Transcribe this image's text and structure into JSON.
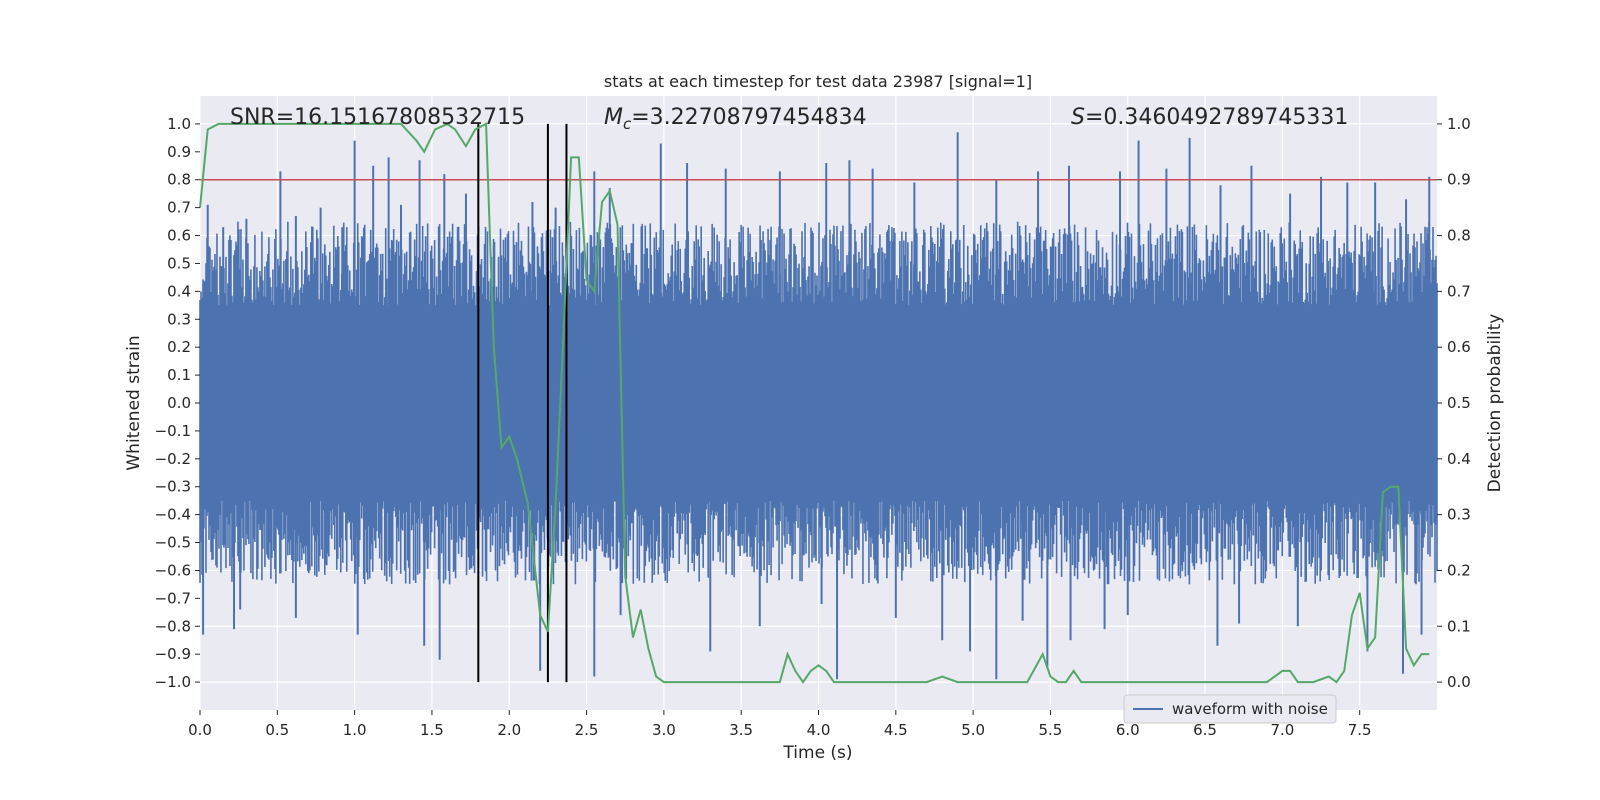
{
  "chart_data": {
    "type": "line",
    "title": "stats at each timestep for test data 23987 [signal=1]",
    "xlabel": "Time (s)",
    "ylabel": "Whitened strain",
    "y2label": "Detection probability",
    "xlim": [
      0.0,
      8.0
    ],
    "ylim": [
      -1.1,
      1.1
    ],
    "y2lim": [
      -0.05,
      1.05
    ],
    "xticks": [
      0.0,
      0.5,
      1.0,
      1.5,
      2.0,
      2.5,
      3.0,
      3.5,
      4.0,
      4.5,
      5.0,
      5.5,
      6.0,
      6.5,
      7.0,
      7.5
    ],
    "xtick_labels": [
      "0.0",
      "0.5",
      "1.0",
      "1.5",
      "2.0",
      "2.5",
      "3.0",
      "3.5",
      "4.0",
      "4.5",
      "5.0",
      "5.5",
      "6.0",
      "6.5",
      "7.0",
      "7.5"
    ],
    "yticks": [
      1.0,
      0.9,
      0.8,
      0.7,
      0.6,
      0.5,
      0.4,
      0.3,
      0.2,
      0.1,
      0.0,
      -0.1,
      -0.2,
      -0.3,
      -0.4,
      -0.5,
      -0.6,
      -0.7,
      -0.8,
      -0.9,
      -1.0
    ],
    "ytick_labels": [
      "1.0",
      "0.9",
      "0.8",
      "0.7",
      "0.6",
      "0.5",
      "0.4",
      "0.3",
      "0.2",
      "0.1",
      "0.0",
      "−0.1",
      "−0.2",
      "−0.3",
      "−0.4",
      "−0.5",
      "−0.6",
      "−0.7",
      "−0.8",
      "−0.9",
      "−1.0"
    ],
    "y2ticks": [
      1.0,
      0.9,
      0.8,
      0.7,
      0.6,
      0.5,
      0.4,
      0.3,
      0.2,
      0.1,
      0.0
    ],
    "y2tick_labels": [
      "1.0",
      "0.9",
      "0.8",
      "0.7",
      "0.6",
      "0.5",
      "0.4",
      "0.3",
      "0.2",
      "0.1",
      "0.0"
    ],
    "annotations": {
      "snr": "SNR=16.15167808532715",
      "mc_symbol": "M",
      "mc_sub": "c",
      "mc_value": "=3.22708797454834",
      "s_symbol": "S",
      "s_value": "=0.3460492789745331"
    },
    "threshold": {
      "value": 0.9,
      "axis": "right",
      "color": "#c44e52"
    },
    "vlines": [
      1.8,
      2.25,
      2.37
    ],
    "legend": {
      "label": "waveform with noise",
      "placement": "lower-right"
    },
    "waveform": {
      "name": "waveform with noise",
      "color": "#4c72b0",
      "x_range": [
        0.0,
        8.0
      ],
      "core_amplitude": 0.35,
      "outer_amplitude": 0.65,
      "spike_peaks": [
        [
          0.05,
          0.71
        ],
        [
          0.15,
          0.63
        ],
        [
          0.3,
          0.66
        ],
        [
          0.52,
          0.83
        ],
        [
          0.62,
          0.67
        ],
        [
          0.78,
          0.7
        ],
        [
          0.92,
          0.63
        ],
        [
          1.0,
          0.94
        ],
        [
          1.12,
          0.85
        ],
        [
          1.22,
          0.88
        ],
        [
          1.3,
          0.71
        ],
        [
          1.42,
          0.87
        ],
        [
          1.58,
          0.82
        ],
        [
          1.72,
          0.75
        ],
        [
          2.15,
          0.72
        ],
        [
          2.3,
          0.7
        ],
        [
          2.55,
          0.83
        ],
        [
          2.65,
          0.77
        ],
        [
          2.98,
          0.93
        ],
        [
          3.15,
          0.86
        ],
        [
          3.4,
          0.84
        ],
        [
          3.75,
          0.83
        ],
        [
          4.05,
          0.86
        ],
        [
          4.2,
          0.87
        ],
        [
          4.35,
          0.84
        ],
        [
          4.62,
          0.79
        ],
        [
          4.9,
          0.97
        ],
        [
          5.15,
          0.8
        ],
        [
          5.42,
          0.83
        ],
        [
          5.62,
          0.85
        ],
        [
          5.95,
          0.83
        ],
        [
          6.07,
          0.94
        ],
        [
          6.25,
          0.84
        ],
        [
          6.4,
          0.95
        ],
        [
          6.6,
          0.78
        ],
        [
          6.8,
          0.85
        ],
        [
          7.05,
          0.75
        ],
        [
          7.25,
          0.81
        ],
        [
          7.42,
          0.79
        ],
        [
          7.6,
          0.79
        ],
        [
          7.8,
          0.73
        ],
        [
          7.95,
          0.81
        ]
      ],
      "spike_troughs": [
        [
          0.02,
          -0.83
        ],
        [
          0.22,
          -0.81
        ],
        [
          0.26,
          -0.74
        ],
        [
          0.62,
          -0.77
        ],
        [
          1.02,
          -0.83
        ],
        [
          1.45,
          -0.87
        ],
        [
          1.55,
          -0.92
        ],
        [
          2.2,
          -0.96
        ],
        [
          2.55,
          -0.98
        ],
        [
          2.72,
          -0.76
        ],
        [
          3.3,
          -0.89
        ],
        [
          3.62,
          -0.8
        ],
        [
          4.02,
          -0.72
        ],
        [
          4.12,
          -0.99
        ],
        [
          4.5,
          -0.77
        ],
        [
          4.8,
          -0.85
        ],
        [
          4.98,
          -0.89
        ],
        [
          5.15,
          -0.99
        ],
        [
          5.32,
          -0.78
        ],
        [
          5.48,
          -0.95
        ],
        [
          5.63,
          -0.85
        ],
        [
          5.85,
          -0.81
        ],
        [
          6.0,
          -0.76
        ],
        [
          6.58,
          -0.87
        ],
        [
          6.72,
          -0.79
        ],
        [
          7.1,
          -0.8
        ],
        [
          7.55,
          -0.89
        ],
        [
          7.78,
          -0.97
        ],
        [
          7.9,
          -0.83
        ]
      ]
    },
    "series": [
      {
        "name": "detection probability",
        "axis": "right",
        "color": "#55a868",
        "x": [
          0.0,
          0.05,
          0.12,
          0.2,
          0.3,
          0.4,
          0.5,
          0.6,
          0.7,
          0.8,
          0.9,
          1.0,
          1.1,
          1.2,
          1.3,
          1.4,
          1.45,
          1.52,
          1.6,
          1.65,
          1.72,
          1.78,
          1.85,
          1.9,
          1.95,
          2.0,
          2.05,
          2.12,
          2.2,
          2.25,
          2.3,
          2.35,
          2.4,
          2.45,
          2.5,
          2.55,
          2.6,
          2.65,
          2.7,
          2.75,
          2.8,
          2.85,
          2.9,
          2.95,
          3.0,
          3.1,
          3.25,
          3.5,
          3.75,
          3.8,
          3.85,
          3.9,
          3.95,
          4.0,
          4.05,
          4.1,
          4.15,
          4.2,
          4.3,
          4.5,
          4.7,
          4.8,
          4.9,
          5.0,
          5.1,
          5.2,
          5.3,
          5.35,
          5.45,
          5.5,
          5.55,
          5.6,
          5.65,
          5.7,
          5.75,
          5.8,
          5.9,
          6.0,
          6.2,
          6.5,
          6.8,
          6.9,
          6.95,
          7.0,
          7.05,
          7.1,
          7.2,
          7.3,
          7.35,
          7.4,
          7.45,
          7.5,
          7.55,
          7.6,
          7.65,
          7.7,
          7.75,
          7.8,
          7.85,
          7.9,
          7.95
        ],
        "y": [
          0.85,
          0.99,
          1.0,
          1.0,
          1.0,
          1.0,
          1.0,
          1.0,
          1.0,
          1.0,
          1.0,
          1.0,
          1.0,
          1.0,
          1.0,
          0.97,
          0.95,
          0.99,
          1.0,
          0.99,
          0.96,
          0.99,
          1.0,
          0.6,
          0.42,
          0.44,
          0.4,
          0.32,
          0.12,
          0.09,
          0.32,
          0.62,
          0.94,
          0.94,
          0.72,
          0.7,
          0.86,
          0.88,
          0.82,
          0.19,
          0.08,
          0.13,
          0.06,
          0.01,
          0.0,
          0.0,
          0.0,
          0.0,
          0.0,
          0.05,
          0.02,
          0.0,
          0.02,
          0.03,
          0.02,
          0.0,
          0.0,
          0.0,
          0.0,
          0.0,
          0.0,
          0.01,
          0.0,
          0.0,
          0.0,
          0.0,
          0.0,
          0.0,
          0.05,
          0.01,
          0.0,
          0.0,
          0.02,
          0.0,
          0.0,
          0.0,
          0.0,
          0.0,
          0.0,
          0.0,
          0.0,
          0.0,
          0.01,
          0.02,
          0.02,
          0.0,
          0.0,
          0.01,
          0.0,
          0.02,
          0.12,
          0.16,
          0.06,
          0.08,
          0.34,
          0.35,
          0.35,
          0.06,
          0.03,
          0.05,
          0.05
        ]
      }
    ]
  }
}
